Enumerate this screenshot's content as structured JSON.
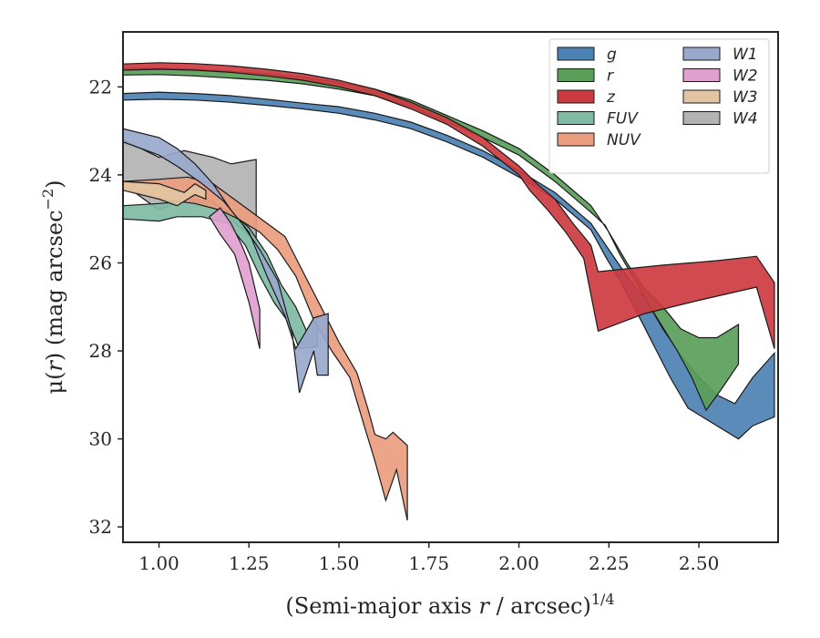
{
  "chart_data": {
    "type": "area",
    "title": "",
    "xlabel": "(Semi-major axis r / arcsec)",
    "xlabel_parts": {
      "pre": "(Semi-major axis ",
      "var": "r",
      "post": " / arcsec)",
      "exp": "1/4"
    },
    "ylabel": "μ(r) (mag arcsec−2)",
    "ylabel_parts": {
      "pre": "μ(",
      "var": "r",
      "post": ") (mag arcsec",
      "exp": "−2",
      "close": ")"
    },
    "xlim": [
      0.9,
      2.72
    ],
    "ylim": [
      32.35,
      20.75
    ],
    "y_inverted": true,
    "xticks": [
      1.0,
      1.25,
      1.5,
      1.75,
      2.0,
      2.25,
      2.5
    ],
    "xtick_labels": [
      "1.00",
      "1.25",
      "1.50",
      "1.75",
      "2.00",
      "2.25",
      "2.50"
    ],
    "yticks": [
      22,
      24,
      26,
      28,
      30,
      32
    ],
    "ytick_labels": [
      "22",
      "24",
      "26",
      "28",
      "30",
      "32"
    ],
    "grid": false,
    "legend": {
      "placement": "top-right",
      "columns": 2
    },
    "series": [
      {
        "name": "W4",
        "color": "#b3b3b3",
        "upper": [
          [
            0.9,
            23.2
          ],
          [
            1.0,
            23.6
          ],
          [
            1.07,
            23.45
          ],
          [
            1.15,
            23.6
          ],
          [
            1.2,
            23.75
          ],
          [
            1.27,
            23.65
          ]
        ],
        "lower": [
          [
            1.27,
            25.55
          ],
          [
            1.2,
            25.0
          ],
          [
            1.15,
            24.6
          ],
          [
            1.07,
            24.55
          ],
          [
            1.0,
            24.8
          ],
          [
            0.9,
            24.2
          ]
        ]
      },
      {
        "name": "g",
        "color": "#4c81b3",
        "upper": [
          [
            0.9,
            22.15
          ],
          [
            1.0,
            22.12
          ],
          [
            1.1,
            22.15
          ],
          [
            1.2,
            22.2
          ],
          [
            1.3,
            22.28
          ],
          [
            1.4,
            22.37
          ],
          [
            1.5,
            22.45
          ],
          [
            1.6,
            22.6
          ],
          [
            1.7,
            22.8
          ],
          [
            1.8,
            23.1
          ],
          [
            1.9,
            23.45
          ],
          [
            2.0,
            23.9
          ],
          [
            2.1,
            24.4
          ],
          [
            2.2,
            25.1
          ],
          [
            2.25,
            25.7
          ],
          [
            2.3,
            26.3
          ],
          [
            2.35,
            26.8
          ],
          [
            2.4,
            27.5
          ],
          [
            2.45,
            28.1
          ],
          [
            2.5,
            28.6
          ],
          [
            2.55,
            29.0
          ],
          [
            2.6,
            29.2
          ],
          [
            2.65,
            28.6
          ],
          [
            2.71,
            28.05
          ]
        ],
        "lower": [
          [
            2.71,
            29.5
          ],
          [
            2.65,
            29.7
          ],
          [
            2.61,
            30.0
          ],
          [
            2.55,
            29.7
          ],
          [
            2.47,
            29.3
          ],
          [
            2.42,
            28.6
          ],
          [
            2.37,
            27.8
          ],
          [
            2.32,
            27.0
          ],
          [
            2.28,
            26.4
          ],
          [
            2.24,
            25.85
          ],
          [
            2.2,
            25.25
          ],
          [
            2.1,
            24.55
          ],
          [
            2.0,
            24.05
          ],
          [
            1.9,
            23.6
          ],
          [
            1.8,
            23.25
          ],
          [
            1.7,
            22.95
          ],
          [
            1.6,
            22.75
          ],
          [
            1.5,
            22.6
          ],
          [
            1.4,
            22.5
          ],
          [
            1.3,
            22.42
          ],
          [
            1.2,
            22.35
          ],
          [
            1.1,
            22.3
          ],
          [
            1.0,
            22.28
          ],
          [
            0.9,
            22.3
          ]
        ]
      },
      {
        "name": "r",
        "color": "#5a9e5a",
        "upper": [
          [
            0.9,
            21.58
          ],
          [
            1.0,
            21.57
          ],
          [
            1.1,
            21.6
          ],
          [
            1.2,
            21.65
          ],
          [
            1.3,
            21.7
          ],
          [
            1.4,
            21.78
          ],
          [
            1.5,
            21.9
          ],
          [
            1.6,
            22.05
          ],
          [
            1.7,
            22.3
          ],
          [
            1.8,
            22.65
          ],
          [
            1.9,
            23.0
          ],
          [
            2.0,
            23.4
          ],
          [
            2.1,
            24.0
          ],
          [
            2.2,
            24.7
          ],
          [
            2.25,
            25.3
          ],
          [
            2.3,
            26.0
          ],
          [
            2.35,
            26.6
          ],
          [
            2.4,
            27.0
          ],
          [
            2.45,
            27.5
          ],
          [
            2.5,
            27.7
          ],
          [
            2.55,
            27.7
          ],
          [
            2.61,
            27.4
          ]
        ],
        "lower": [
          [
            2.61,
            28.3
          ],
          [
            2.56,
            28.9
          ],
          [
            2.52,
            29.35
          ],
          [
            2.48,
            28.6
          ],
          [
            2.44,
            28.0
          ],
          [
            2.38,
            27.2
          ],
          [
            2.33,
            26.5
          ],
          [
            2.28,
            25.8
          ],
          [
            2.24,
            25.15
          ],
          [
            2.2,
            24.85
          ],
          [
            2.1,
            24.15
          ],
          [
            2.0,
            23.55
          ],
          [
            1.9,
            23.15
          ],
          [
            1.8,
            22.8
          ],
          [
            1.7,
            22.45
          ],
          [
            1.6,
            22.2
          ],
          [
            1.5,
            22.05
          ],
          [
            1.4,
            21.93
          ],
          [
            1.3,
            21.85
          ],
          [
            1.2,
            21.8
          ],
          [
            1.1,
            21.75
          ],
          [
            1.0,
            21.72
          ],
          [
            0.9,
            21.73
          ]
        ]
      },
      {
        "name": "z",
        "color": "#cc3b40",
        "upper": [
          [
            0.9,
            21.48
          ],
          [
            1.0,
            21.45
          ],
          [
            1.1,
            21.47
          ],
          [
            1.2,
            21.52
          ],
          [
            1.3,
            21.6
          ],
          [
            1.4,
            21.7
          ],
          [
            1.5,
            21.85
          ],
          [
            1.6,
            22.05
          ],
          [
            1.7,
            22.35
          ],
          [
            1.8,
            22.7
          ],
          [
            1.9,
            23.15
          ],
          [
            2.0,
            23.8
          ],
          [
            2.05,
            24.2
          ],
          [
            2.1,
            24.55
          ],
          [
            2.15,
            25.1
          ],
          [
            2.2,
            25.6
          ],
          [
            2.22,
            26.2
          ],
          [
            2.4,
            26.05
          ],
          [
            2.55,
            25.95
          ],
          [
            2.66,
            25.85
          ],
          [
            2.71,
            26.45
          ]
        ],
        "lower": [
          [
            2.71,
            27.95
          ],
          [
            2.66,
            26.55
          ],
          [
            2.5,
            26.85
          ],
          [
            2.35,
            27.15
          ],
          [
            2.22,
            27.55
          ],
          [
            2.18,
            25.9
          ],
          [
            2.13,
            25.3
          ],
          [
            2.08,
            24.8
          ],
          [
            2.03,
            24.35
          ],
          [
            2.0,
            24.0
          ],
          [
            1.9,
            23.35
          ],
          [
            1.8,
            22.85
          ],
          [
            1.7,
            22.5
          ],
          [
            1.6,
            22.2
          ],
          [
            1.5,
            22.0
          ],
          [
            1.4,
            21.85
          ],
          [
            1.3,
            21.75
          ],
          [
            1.2,
            21.67
          ],
          [
            1.1,
            21.62
          ],
          [
            1.0,
            21.6
          ],
          [
            0.9,
            21.62
          ]
        ]
      },
      {
        "name": "FUV",
        "color": "#7fbba4",
        "upper": [
          [
            0.9,
            24.7
          ],
          [
            1.0,
            24.65
          ],
          [
            1.08,
            24.6
          ],
          [
            1.15,
            24.65
          ],
          [
            1.2,
            24.85
          ],
          [
            1.25,
            25.2
          ],
          [
            1.3,
            25.8
          ],
          [
            1.34,
            26.5
          ],
          [
            1.38,
            27.0
          ],
          [
            1.41,
            27.55
          ],
          [
            1.44,
            27.2
          ]
        ],
        "lower": [
          [
            1.44,
            27.9
          ],
          [
            1.39,
            27.95
          ],
          [
            1.36,
            27.35
          ],
          [
            1.32,
            26.9
          ],
          [
            1.28,
            26.3
          ],
          [
            1.24,
            25.6
          ],
          [
            1.19,
            25.1
          ],
          [
            1.12,
            24.95
          ],
          [
            1.05,
            24.95
          ],
          [
            1.0,
            25.05
          ],
          [
            0.9,
            25.0
          ]
        ]
      },
      {
        "name": "NUV",
        "color": "#eb9d7f",
        "upper": [
          [
            0.9,
            24.15
          ],
          [
            1.0,
            24.1
          ],
          [
            1.08,
            24.05
          ],
          [
            1.15,
            24.2
          ],
          [
            1.2,
            24.5
          ],
          [
            1.25,
            24.8
          ],
          [
            1.3,
            25.1
          ],
          [
            1.35,
            25.4
          ],
          [
            1.4,
            26.2
          ],
          [
            1.45,
            27.0
          ],
          [
            1.5,
            27.8
          ],
          [
            1.55,
            28.5
          ],
          [
            1.58,
            29.3
          ],
          [
            1.6,
            29.9
          ],
          [
            1.63,
            30.0
          ],
          [
            1.65,
            29.85
          ],
          [
            1.69,
            30.15
          ]
        ],
        "lower": [
          [
            1.69,
            31.85
          ],
          [
            1.66,
            30.7
          ],
          [
            1.63,
            31.4
          ],
          [
            1.6,
            30.5
          ],
          [
            1.57,
            29.7
          ],
          [
            1.53,
            28.6
          ],
          [
            1.48,
            28.0
          ],
          [
            1.43,
            27.3
          ],
          [
            1.38,
            26.3
          ],
          [
            1.33,
            25.7
          ],
          [
            1.28,
            25.3
          ],
          [
            1.22,
            25.0
          ],
          [
            1.17,
            24.8
          ],
          [
            1.1,
            24.65
          ],
          [
            1.0,
            24.55
          ],
          [
            0.9,
            24.3
          ]
        ]
      },
      {
        "name": "W1",
        "color": "#99a8cc",
        "upper": [
          [
            0.9,
            22.95
          ],
          [
            1.0,
            23.15
          ],
          [
            1.05,
            23.4
          ],
          [
            1.1,
            23.75
          ],
          [
            1.15,
            24.2
          ],
          [
            1.2,
            24.8
          ],
          [
            1.25,
            25.3
          ],
          [
            1.3,
            26.3
          ],
          [
            1.35,
            27.2
          ],
          [
            1.38,
            27.95
          ],
          [
            1.43,
            27.25
          ],
          [
            1.47,
            27.15
          ]
        ],
        "lower": [
          [
            1.47,
            28.55
          ],
          [
            1.44,
            28.55
          ],
          [
            1.43,
            28.0
          ],
          [
            1.39,
            28.95
          ],
          [
            1.37,
            27.6
          ],
          [
            1.33,
            26.4
          ],
          [
            1.28,
            25.7
          ],
          [
            1.23,
            25.1
          ],
          [
            1.18,
            24.6
          ],
          [
            1.12,
            24.2
          ],
          [
            1.05,
            23.8
          ],
          [
            1.0,
            23.55
          ],
          [
            0.9,
            23.25
          ]
        ]
      },
      {
        "name": "W2",
        "color": "#e0a0cf",
        "upper": [
          [
            1.17,
            24.75
          ],
          [
            1.2,
            25.1
          ],
          [
            1.23,
            25.6
          ],
          [
            1.25,
            26.0
          ],
          [
            1.28,
            27.05
          ]
        ],
        "lower": [
          [
            1.28,
            27.95
          ],
          [
            1.25,
            26.9
          ],
          [
            1.21,
            25.8
          ],
          [
            1.17,
            25.35
          ],
          [
            1.14,
            24.95
          ]
        ]
      },
      {
        "name": "W3",
        "color": "#e3c4a2",
        "upper": [
          [
            0.9,
            24.15
          ],
          [
            1.0,
            24.2
          ],
          [
            1.07,
            24.4
          ],
          [
            1.1,
            24.2
          ],
          [
            1.13,
            24.35
          ]
        ],
        "lower": [
          [
            1.13,
            24.55
          ],
          [
            1.1,
            24.45
          ],
          [
            1.05,
            24.7
          ],
          [
            1.0,
            24.55
          ],
          [
            0.9,
            24.35
          ]
        ]
      }
    ],
    "legend_entries": [
      {
        "name": "g",
        "color": "#4c81b3"
      },
      {
        "name": "r",
        "color": "#5a9e5a"
      },
      {
        "name": "z",
        "color": "#cc3b40"
      },
      {
        "name": "FUV",
        "color": "#7fbba4"
      },
      {
        "name": "NUV",
        "color": "#eb9d7f"
      },
      {
        "name": "W1",
        "color": "#99a8cc"
      },
      {
        "name": "W2",
        "color": "#e0a0cf"
      },
      {
        "name": "W3",
        "color": "#e3c4a2"
      },
      {
        "name": "W4",
        "color": "#b3b3b3"
      }
    ]
  }
}
